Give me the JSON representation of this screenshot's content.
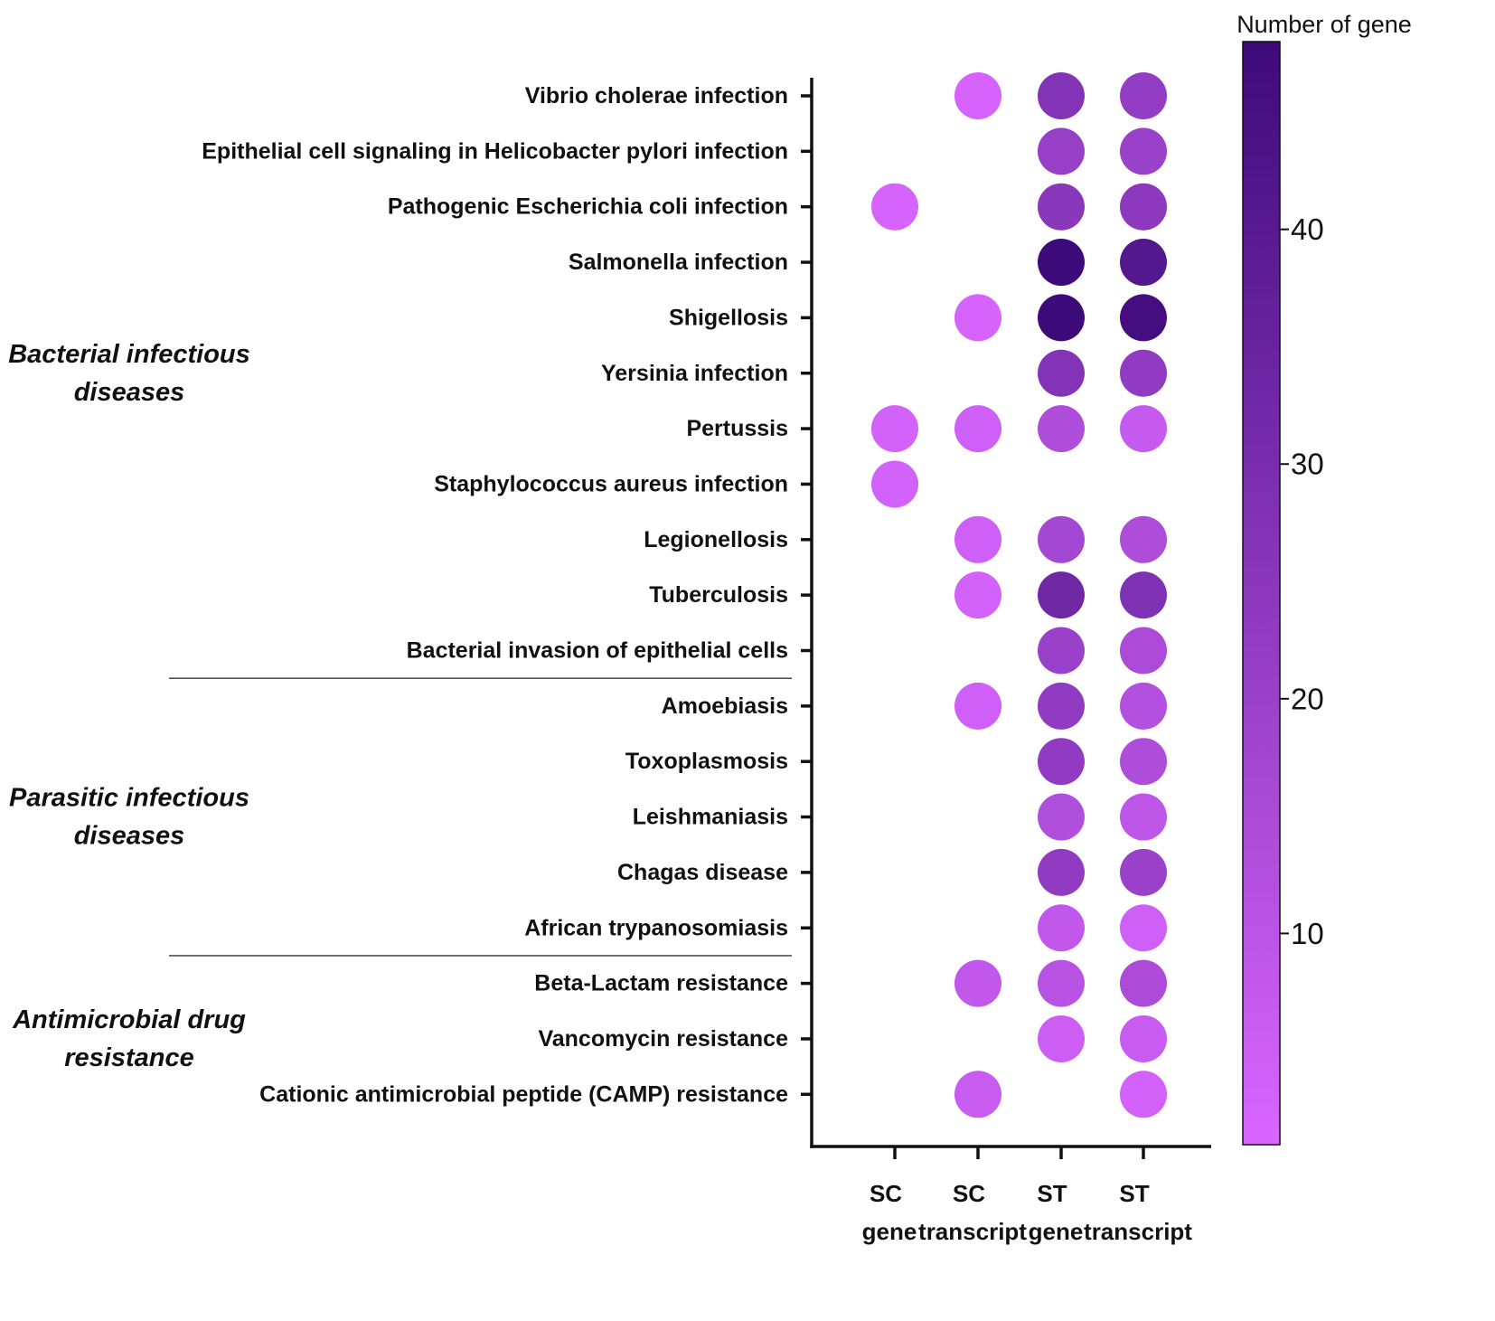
{
  "chart_data": {
    "type": "bubble-heatmap",
    "title": "",
    "columns": [
      {
        "line1": "SC",
        "line2": "gene"
      },
      {
        "line1": "SC",
        "line2": "transcript"
      },
      {
        "line1": "ST",
        "line2": "gene"
      },
      {
        "line1": "ST",
        "line2": "transcript"
      }
    ],
    "rows": [
      "Vibrio cholerae infection",
      "Epithelial cell signaling in Helicobacter pylori infection",
      "Pathogenic Escherichia coli infection",
      "Salmonella infection",
      "Shigellosis",
      "Yersinia infection",
      "Pertussis",
      "Staphylococcus aureus infection",
      "Legionellosis",
      "Tuberculosis",
      "Bacterial invasion of epithelial cells",
      "Amoebiasis",
      "Toxoplasmosis",
      "Leishmaniasis",
      "Chagas disease",
      "African trypanosomiasis",
      "Beta-Lactam resistance",
      "Vancomycin resistance",
      "Cationic antimicrobial peptide (CAMP) resistance"
    ],
    "values": [
      [
        null,
        2,
        27,
        22
      ],
      [
        null,
        null,
        21,
        20
      ],
      [
        2,
        null,
        25,
        24
      ],
      [
        null,
        null,
        48,
        41
      ],
      [
        null,
        2,
        48,
        46
      ],
      [
        null,
        null,
        27,
        23
      ],
      [
        3,
        4,
        14,
        7
      ],
      [
        3,
        null,
        null,
        null
      ],
      [
        null,
        4,
        17,
        14
      ],
      [
        null,
        3,
        33,
        28
      ],
      [
        null,
        null,
        20,
        15
      ],
      [
        null,
        4,
        23,
        12
      ],
      [
        null,
        null,
        23,
        14
      ],
      [
        null,
        null,
        13,
        9
      ],
      [
        null,
        null,
        23,
        20
      ],
      [
        null,
        null,
        8,
        4
      ],
      [
        null,
        8,
        11,
        15
      ],
      [
        null,
        null,
        5,
        6
      ],
      [
        null,
        6,
        null,
        3
      ]
    ],
    "groups": [
      {
        "line1": "Bacterial infectious",
        "line2": "diseases",
        "from": 0,
        "to": 10
      },
      {
        "line1": "Parasitic infectious",
        "line2": "diseases",
        "from": 11,
        "to": 15
      },
      {
        "line1": "Antimicrobial drug",
        "line2": "resistance",
        "from": 16,
        "to": 18
      }
    ],
    "colorbar": {
      "title": "Number of gene",
      "min": 1,
      "max": 48,
      "ticks": [
        10,
        20,
        30,
        40
      ],
      "color_low": "#d966ff",
      "color_high": "#3d0a7a"
    }
  }
}
